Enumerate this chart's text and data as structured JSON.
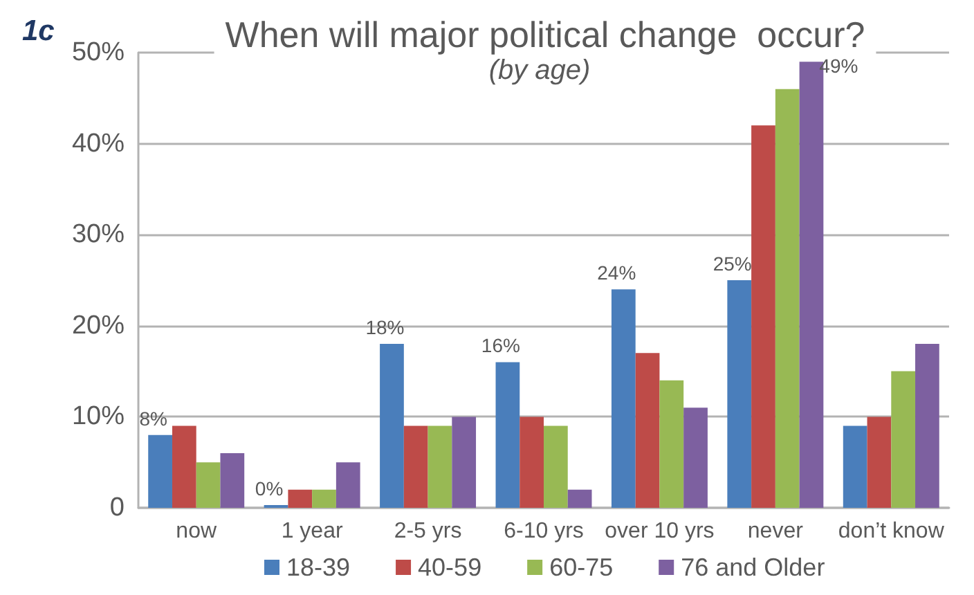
{
  "chart_data": {
    "type": "bar",
    "title": "When will major political change  occur?",
    "subtitle": "(by age)",
    "annotations": [
      "1c"
    ],
    "categories": [
      "now",
      "1 year",
      "2-5 yrs",
      "6-10 yrs",
      "over 10 yrs",
      "never",
      "don’t know"
    ],
    "series": [
      {
        "name": "18-39",
        "color": "#4a7ebb",
        "values": [
          8,
          0,
          18,
          16,
          24,
          25,
          9
        ],
        "value_labels": [
          "8%",
          "0%",
          "18%",
          "16%",
          "24%",
          "25%",
          null
        ]
      },
      {
        "name": "40-59",
        "color": "#be4b48",
        "values": [
          9,
          2,
          9,
          10,
          17,
          42,
          10
        ]
      },
      {
        "name": "60-75",
        "color": "#98b954",
        "values": [
          5,
          2,
          9,
          9,
          14,
          46,
          15
        ]
      },
      {
        "name": "76 and Older",
        "color": "#7d60a0",
        "values": [
          6,
          5,
          10,
          2,
          11,
          49,
          18
        ],
        "value_labels": [
          null,
          null,
          null,
          null,
          null,
          "49%",
          null
        ]
      }
    ],
    "ylim": [
      0,
      50
    ],
    "yticks": [
      0,
      {
        "value": 10,
        "label": "10%"
      },
      {
        "value": 20,
        "label": "20%"
      },
      {
        "value": 30,
        "label": "30%"
      },
      {
        "value": 40,
        "label": "40%"
      },
      {
        "value": 50,
        "label": "50%"
      }
    ],
    "grid": "y",
    "legend": "bottom"
  }
}
